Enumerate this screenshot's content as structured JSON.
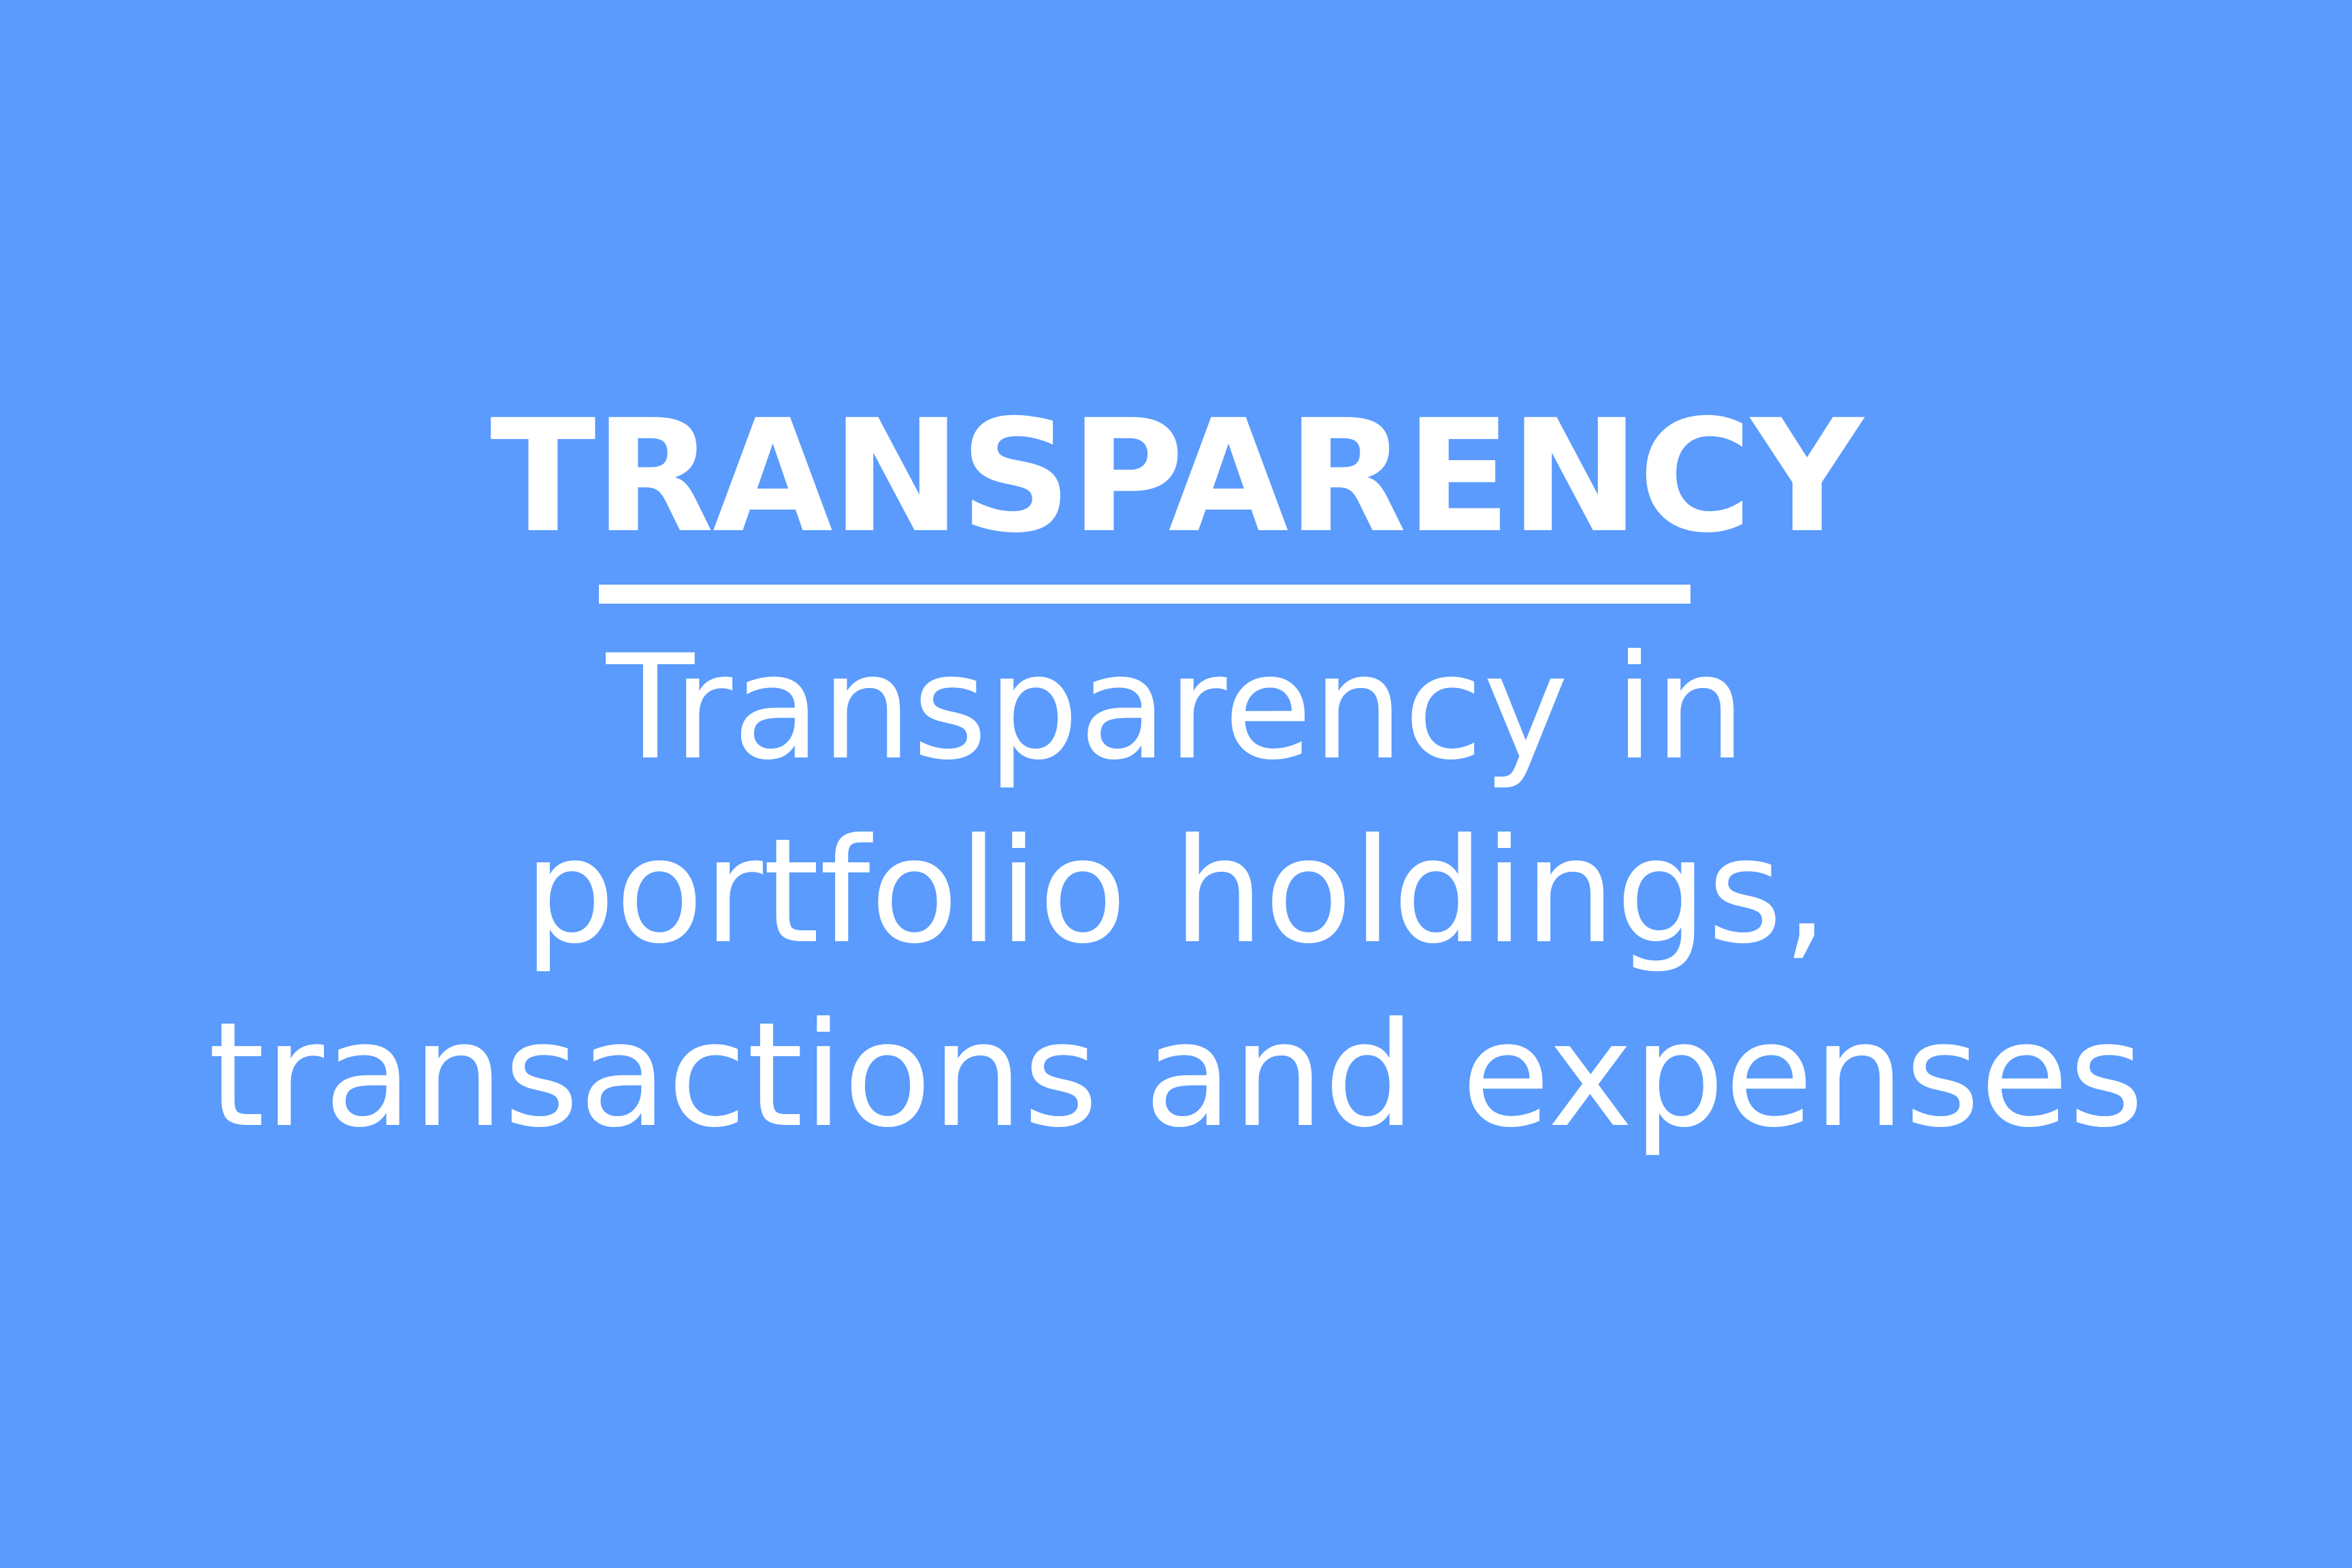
{
  "card": {
    "background_color": "#5a9bfd",
    "text_color": "#ffffff",
    "heading": "TRANSPARENCY",
    "lines": [
      "Transparency in",
      "portfolio holdings,",
      "transactions and expenses"
    ]
  }
}
